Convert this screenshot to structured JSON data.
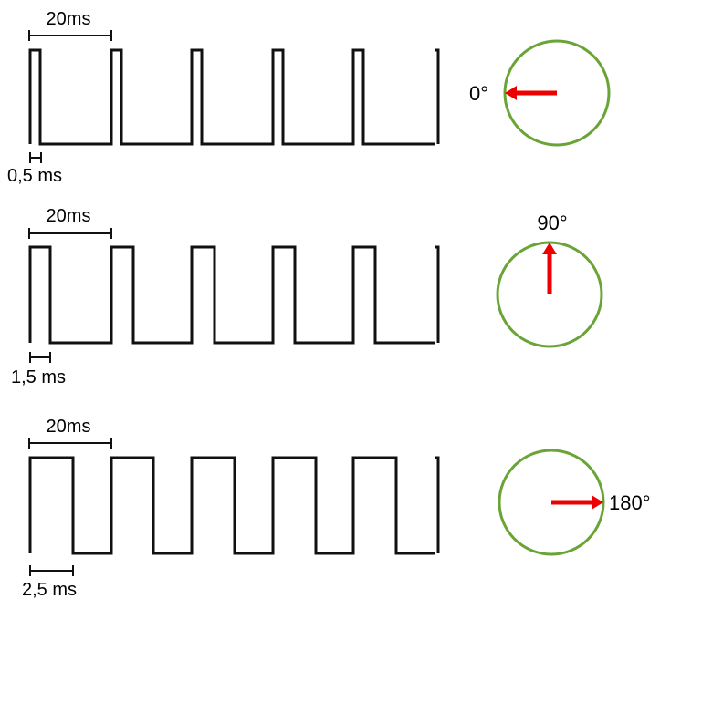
{
  "rows": [
    {
      "period_label": "20ms",
      "pulse_label": "0,5 ms",
      "pulse_ms": 0.5,
      "period_ms": 20,
      "angle_label": "0°",
      "angle_deg": 0
    },
    {
      "period_label": "20ms",
      "pulse_label": "1,5 ms",
      "pulse_ms": 1.5,
      "period_ms": 20,
      "angle_label": "90°",
      "angle_deg": 90
    },
    {
      "period_label": "20ms",
      "pulse_label": "2,5 ms",
      "pulse_ms": 2.5,
      "period_ms": 20,
      "angle_label": "180°",
      "angle_deg": 180
    }
  ],
  "colors": {
    "signal": "#111111",
    "dial": "#6aa436",
    "arrow": "#ee0000"
  }
}
